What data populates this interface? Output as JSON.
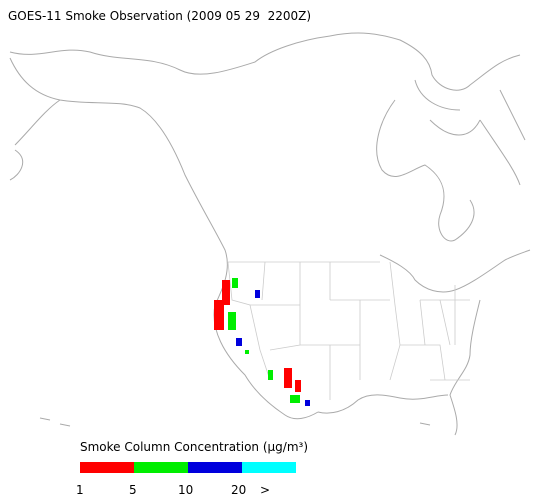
{
  "title": "GOES-11 Smoke Observation (2009 05 29  2200Z)",
  "legend": {
    "label": "Smoke Column Concentration (μg/m³)",
    "colors": [
      "#ff0000",
      "#00ee00",
      "#0000dd",
      "#00ffff"
    ],
    "ticks": [
      "1",
      "5",
      "10",
      "20",
      ">"
    ]
  }
}
